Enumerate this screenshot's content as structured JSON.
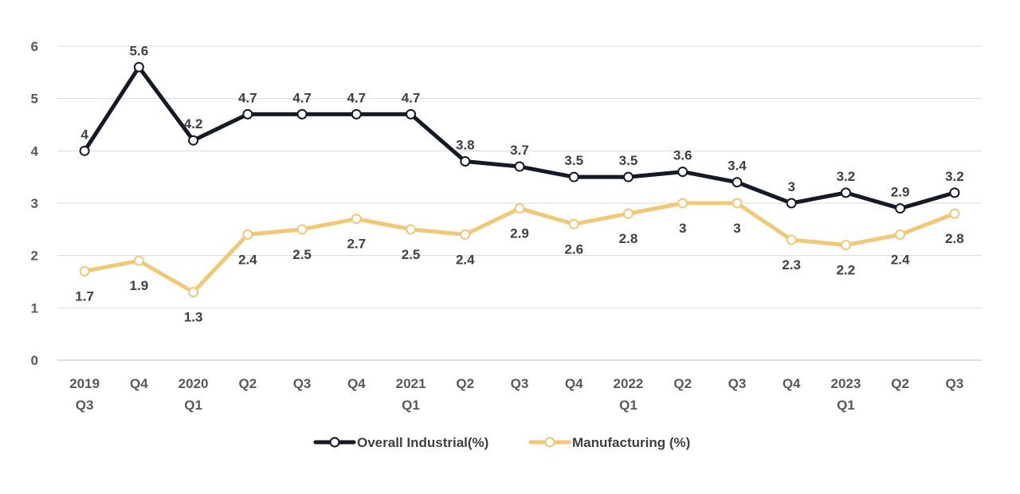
{
  "chart_data": {
    "type": "line",
    "title": "",
    "xlabel": "",
    "ylabel": "",
    "ylim": [
      0,
      6
    ],
    "yticks": [
      "0",
      "1",
      "2",
      "3",
      "4",
      "5",
      "6"
    ],
    "grid": true,
    "legend": "bottom-center",
    "categories": [
      [
        "2019",
        "Q3"
      ],
      [
        "Q4"
      ],
      [
        "2020",
        "Q1"
      ],
      [
        "Q2"
      ],
      [
        "Q3"
      ],
      [
        "Q4"
      ],
      [
        "2021",
        "Q1"
      ],
      [
        "Q2"
      ],
      [
        "Q3"
      ],
      [
        "Q4"
      ],
      [
        "2022",
        "Q1"
      ],
      [
        "Q2"
      ],
      [
        "Q3"
      ],
      [
        "Q4"
      ],
      [
        "2023",
        "Q1"
      ],
      [
        "Q2"
      ],
      [
        "Q3"
      ]
    ],
    "series": [
      {
        "name": "Overall Industrial(%)",
        "color": "#141a26",
        "label_position": "above",
        "values": [
          4,
          5.6,
          4.2,
          4.7,
          4.7,
          4.7,
          4.7,
          3.8,
          3.7,
          3.5,
          3.5,
          3.6,
          3.4,
          3,
          3.2,
          2.9,
          3.2
        ]
      },
      {
        "name": "Manufacturing (%)",
        "color": "#f0c878",
        "label_position": "below",
        "values": [
          1.7,
          1.9,
          1.3,
          2.4,
          2.5,
          2.7,
          2.5,
          2.4,
          2.9,
          2.6,
          2.8,
          3,
          3,
          2.3,
          2.2,
          2.4,
          2.8
        ]
      }
    ]
  }
}
